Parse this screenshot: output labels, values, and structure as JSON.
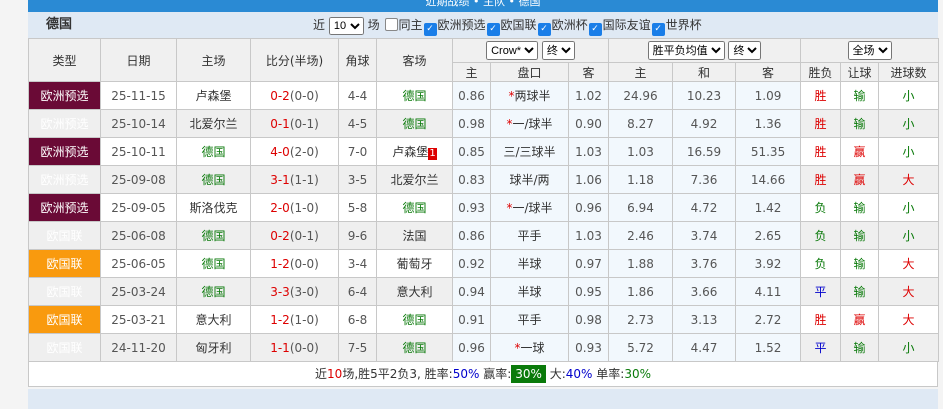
{
  "title": "近期战绩 • 主队 • 德国",
  "team": "德国",
  "filters": {
    "prefix": "近",
    "count": "10",
    "suffix": "场",
    "same_home": "同主",
    "leagues": [
      "欧洲预选",
      "欧国联",
      "欧洲杯",
      "国际友谊",
      "世界杯"
    ]
  },
  "headers": {
    "type": "类型",
    "date": "日期",
    "home": "主场",
    "score": "比分(半场)",
    "corner": "角球",
    "away": "客场",
    "company": "Crow*",
    "final1": "终",
    "odds_type": "胜平负均值",
    "final2": "终",
    "scope": "全场",
    "ah_home": "主",
    "ah_line": "盘口",
    "ah_away": "客",
    "eu_home": "主",
    "eu_draw": "和",
    "eu_away": "客",
    "wl": "胜负",
    "ah_res": "让球",
    "ou": "进球数"
  },
  "rows": [
    {
      "type": "欧洲预选",
      "t": 1,
      "date": "25-11-15",
      "home": "卢森堡",
      "hg": false,
      "ft": "0-2",
      "ht": "(0-0)",
      "corner": "4-4",
      "away": "德国",
      "ag": true,
      "red": "",
      "o1": "0.86",
      "line": "两球半",
      "star": true,
      "o2": "1.02",
      "e1": "24.96",
      "e2": "10.23",
      "e3": "1.09",
      "wl": "胜",
      "ah": "输",
      "ou": "小"
    },
    {
      "type": "欧洲预选",
      "t": 1,
      "date": "25-10-14",
      "home": "北爱尔兰",
      "hg": false,
      "ft": "0-1",
      "ht": "(0-1)",
      "corner": "4-5",
      "away": "德国",
      "ag": true,
      "red": "",
      "o1": "0.98",
      "line": "一/球半",
      "star": true,
      "o2": "0.90",
      "e1": "8.27",
      "e2": "4.92",
      "e3": "1.36",
      "wl": "胜",
      "ah": "输",
      "ou": "小"
    },
    {
      "type": "欧洲预选",
      "t": 1,
      "date": "25-10-11",
      "home": "德国",
      "hg": true,
      "ft": "4-0",
      "ht": "(2-0)",
      "corner": "7-0",
      "away": "卢森堡",
      "ag": false,
      "red": "1",
      "o1": "0.85",
      "line": "三/三球半",
      "star": false,
      "o2": "1.03",
      "e1": "1.03",
      "e2": "16.59",
      "e3": "51.35",
      "wl": "胜",
      "ah": "赢",
      "ou": "小"
    },
    {
      "type": "欧洲预选",
      "t": 1,
      "date": "25-09-08",
      "home": "德国",
      "hg": true,
      "ft": "3-1",
      "ht": "(1-1)",
      "corner": "3-5",
      "away": "北爱尔兰",
      "ag": false,
      "red": "",
      "o1": "0.83",
      "line": "球半/两",
      "star": false,
      "o2": "1.06",
      "e1": "1.18",
      "e2": "7.36",
      "e3": "14.66",
      "wl": "胜",
      "ah": "赢",
      "ou": "大"
    },
    {
      "type": "欧洲预选",
      "t": 1,
      "date": "25-09-05",
      "home": "斯洛伐克",
      "hg": false,
      "ft": "2-0",
      "ht": "(1-0)",
      "corner": "5-8",
      "away": "德国",
      "ag": true,
      "red": "",
      "o1": "0.93",
      "line": "一/球半",
      "star": true,
      "o2": "0.96",
      "e1": "6.94",
      "e2": "4.72",
      "e3": "1.42",
      "wl": "负",
      "ah": "输",
      "ou": "小"
    },
    {
      "type": "欧国联",
      "t": 2,
      "date": "25-06-08",
      "home": "德国",
      "hg": true,
      "ft": "0-2",
      "ht": "(0-1)",
      "corner": "9-6",
      "away": "法国",
      "ag": false,
      "red": "",
      "o1": "0.86",
      "line": "平手",
      "star": false,
      "o2": "1.03",
      "e1": "2.46",
      "e2": "3.74",
      "e3": "2.65",
      "wl": "负",
      "ah": "输",
      "ou": "小"
    },
    {
      "type": "欧国联",
      "t": 2,
      "date": "25-06-05",
      "home": "德国",
      "hg": true,
      "ft": "1-2",
      "ht": "(0-0)",
      "corner": "3-4",
      "away": "葡萄牙",
      "ag": false,
      "red": "",
      "o1": "0.92",
      "line": "半球",
      "star": false,
      "o2": "0.97",
      "e1": "1.88",
      "e2": "3.76",
      "e3": "3.92",
      "wl": "负",
      "ah": "输",
      "ou": "大"
    },
    {
      "type": "欧国联",
      "t": 2,
      "date": "25-03-24",
      "home": "德国",
      "hg": true,
      "ft": "3-3",
      "ht": "(3-0)",
      "corner": "6-4",
      "away": "意大利",
      "ag": false,
      "red": "",
      "o1": "0.94",
      "line": "半球",
      "star": false,
      "o2": "0.95",
      "e1": "1.86",
      "e2": "3.66",
      "e3": "4.11",
      "wl": "平",
      "ah": "输",
      "ou": "大"
    },
    {
      "type": "欧国联",
      "t": 2,
      "date": "25-03-21",
      "home": "意大利",
      "hg": false,
      "ft": "1-2",
      "ht": "(1-0)",
      "corner": "6-8",
      "away": "德国",
      "ag": true,
      "red": "",
      "o1": "0.91",
      "line": "平手",
      "star": false,
      "o2": "0.98",
      "e1": "2.73",
      "e2": "3.13",
      "e3": "2.72",
      "wl": "胜",
      "ah": "赢",
      "ou": "大"
    },
    {
      "type": "欧国联",
      "t": 2,
      "date": "24-11-20",
      "home": "匈牙利",
      "hg": false,
      "ft": "1-1",
      "ht": "(0-0)",
      "corner": "7-5",
      "away": "德国",
      "ag": true,
      "red": "",
      "o1": "0.96",
      "line": "一球",
      "star": true,
      "o2": "0.93",
      "e1": "5.72",
      "e2": "4.47",
      "e3": "1.52",
      "wl": "平",
      "ah": "输",
      "ou": "小"
    }
  ],
  "summary": {
    "p1": "近",
    "n": "10",
    "p2": "场,胜5平2负3, 胜率:",
    "win": "50%",
    "p3": " 赢率:",
    "ahwin": "30%",
    "p4": " 大:",
    "big": "40%",
    "p5": " 单率:",
    "odd": "30%"
  },
  "colors": {
    "qualifier": "#6a0a36",
    "nations_league": "#f99a0e",
    "title": "#2a8ad4"
  }
}
